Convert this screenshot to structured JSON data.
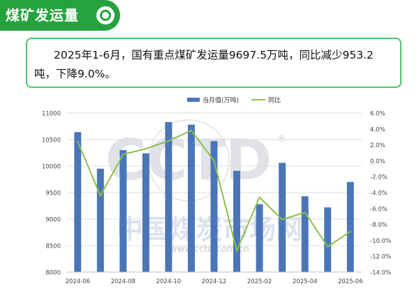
{
  "header": {
    "title": "煤矿发运量"
  },
  "summary": {
    "text": "2025年1-6月，国有重点煤矿发运量9697.5万吨，同比减少953.2吨，下降9.0%。"
  },
  "watermark": {
    "logo_text": "CCTD",
    "site_text": "www.cctd.com.cn",
    "cn_text": "中国煤炭市场网"
  },
  "colors": {
    "bar": "#4a76b8",
    "line": "#8bbf4a",
    "header": "#25a23d",
    "border": "#4ec26a"
  },
  "chart_data": {
    "type": "bar",
    "x": [
      "2024-06",
      "2024-07",
      "2024-08",
      "2024-09",
      "2024-10",
      "2024-11",
      "2024-12",
      "2025-01",
      "2025-02",
      "2025-03",
      "2025-04",
      "2025-05",
      "2025-06"
    ],
    "x_tick_labels": [
      "2024-06",
      "2024-08",
      "2024-10",
      "2024-12",
      "2025-02",
      "2025-04",
      "2025-06"
    ],
    "series": [
      {
        "name": "当月值(万吨)",
        "type": "bar",
        "axis": "left",
        "values": [
          10640,
          9950,
          10300,
          10240,
          10830,
          10780,
          10470,
          9910,
          9280,
          10060,
          9430,
          9220,
          9700
        ]
      },
      {
        "name": "同比",
        "type": "line",
        "axis": "right",
        "values": [
          2.4,
          -4.4,
          0.8,
          1.5,
          2.5,
          3.8,
          0.0,
          -11.3,
          -4.6,
          -7.4,
          -6.5,
          -10.8,
          -8.9
        ]
      }
    ],
    "y_left": {
      "min": 8000,
      "max": 11000,
      "step": 500,
      "ticks": [
        "8000",
        "8500",
        "9000",
        "9500",
        "10000",
        "10500",
        "11000"
      ]
    },
    "y_right": {
      "min": -14,
      "max": 6,
      "step": 2,
      "ticks": [
        "-14.0%",
        "-12.0%",
        "-10.0%",
        "-8.0%",
        "-6.0%",
        "-4.0%",
        "-2.0%",
        "0.0%",
        "2.0%",
        "4.0%",
        "6.0%"
      ]
    },
    "legend": {
      "position": "top-center",
      "items": [
        "当月值(万吨)",
        "同比"
      ]
    },
    "grid": true
  }
}
